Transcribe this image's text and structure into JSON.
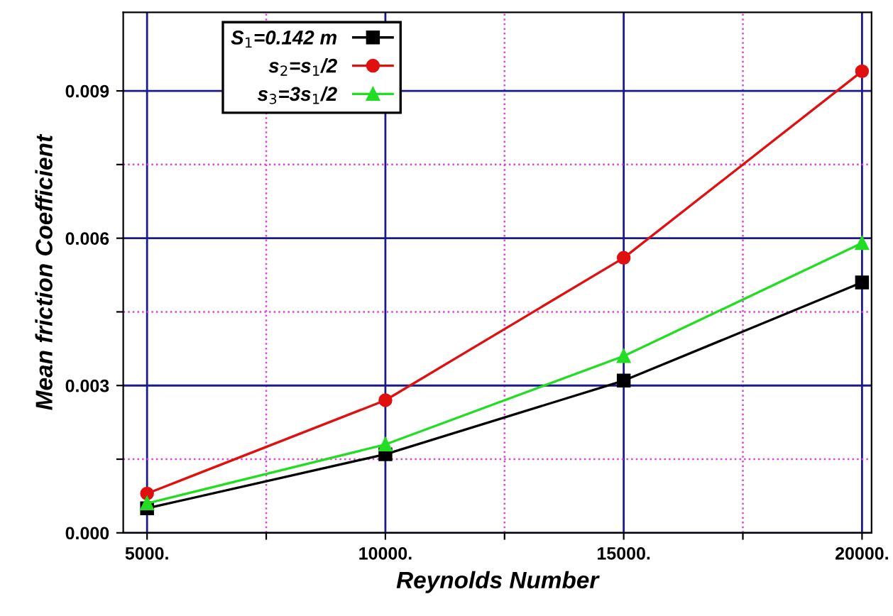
{
  "chart_data": {
    "type": "line",
    "xlabel": "Reynolds Number",
    "ylabel": "Mean friction Coefficient",
    "x": [
      5000,
      10000,
      15000,
      20000
    ],
    "series": [
      {
        "name": "S$_{1}$=0.142 m",
        "color": "#000000",
        "marker": "square",
        "values": [
          0.0005,
          0.0016,
          0.0031,
          0.0051
        ]
      },
      {
        "name": "s$_{2}$=s$_{1}$/2",
        "color": "#e01010",
        "marker": "circle",
        "values": [
          0.0008,
          0.0027,
          0.0056,
          0.0094
        ]
      },
      {
        "name": "s$_{3}$=3s$_{1}$/2",
        "color": "#22dd22",
        "marker": "triangle",
        "values": [
          0.0006,
          0.0018,
          0.0036,
          0.0059
        ]
      }
    ],
    "xlim": [
      4500,
      20200
    ],
    "ylim": [
      0,
      0.0106
    ],
    "xticks": [
      {
        "value": 5000,
        "label": "5000."
      },
      {
        "value": 7500,
        "label": null
      },
      {
        "value": 10000,
        "label": "10000."
      },
      {
        "value": 12500,
        "label": null
      },
      {
        "value": 15000,
        "label": "15000."
      },
      {
        "value": 17500,
        "label": null
      },
      {
        "value": 20000,
        "label": "20000."
      }
    ],
    "yticks": [
      {
        "value": 0,
        "label": "0.000"
      },
      {
        "value": 0.0015,
        "label": null
      },
      {
        "value": 0.003,
        "label": "0.003"
      },
      {
        "value": 0.0045,
        "label": null
      },
      {
        "value": 0.006,
        "label": "0.006"
      },
      {
        "value": 0.0075,
        "label": null
      },
      {
        "value": 0.009,
        "label": "0.009"
      }
    ],
    "grid": true,
    "legend": "top left",
    "line_style": "solid"
  }
}
